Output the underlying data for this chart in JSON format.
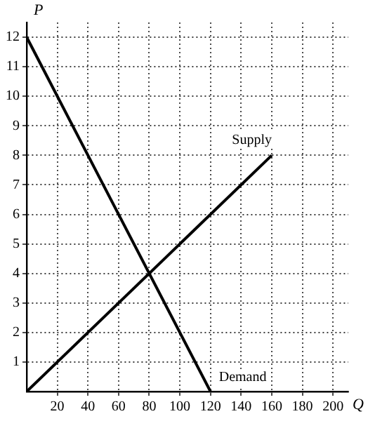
{
  "chart_data": {
    "type": "line",
    "xlabel": "Q",
    "ylabel": "P",
    "series": [
      {
        "name": "Supply",
        "color": "#000000",
        "x": [
          0,
          160
        ],
        "values": [
          0,
          8
        ]
      },
      {
        "name": "Demand",
        "color": "#000000",
        "x": [
          0,
          120
        ],
        "values": [
          12,
          0
        ]
      }
    ],
    "xlim": [
      0,
      210
    ],
    "ylim": [
      0,
      12.5
    ],
    "xticks": [
      20,
      40,
      60,
      80,
      100,
      120,
      140,
      160,
      180,
      200
    ],
    "yticks": [
      1,
      2,
      3,
      4,
      5,
      6,
      7,
      8,
      9,
      10,
      11,
      12
    ],
    "grid": true,
    "legend": false,
    "marker": "none",
    "line_style": "solid"
  }
}
